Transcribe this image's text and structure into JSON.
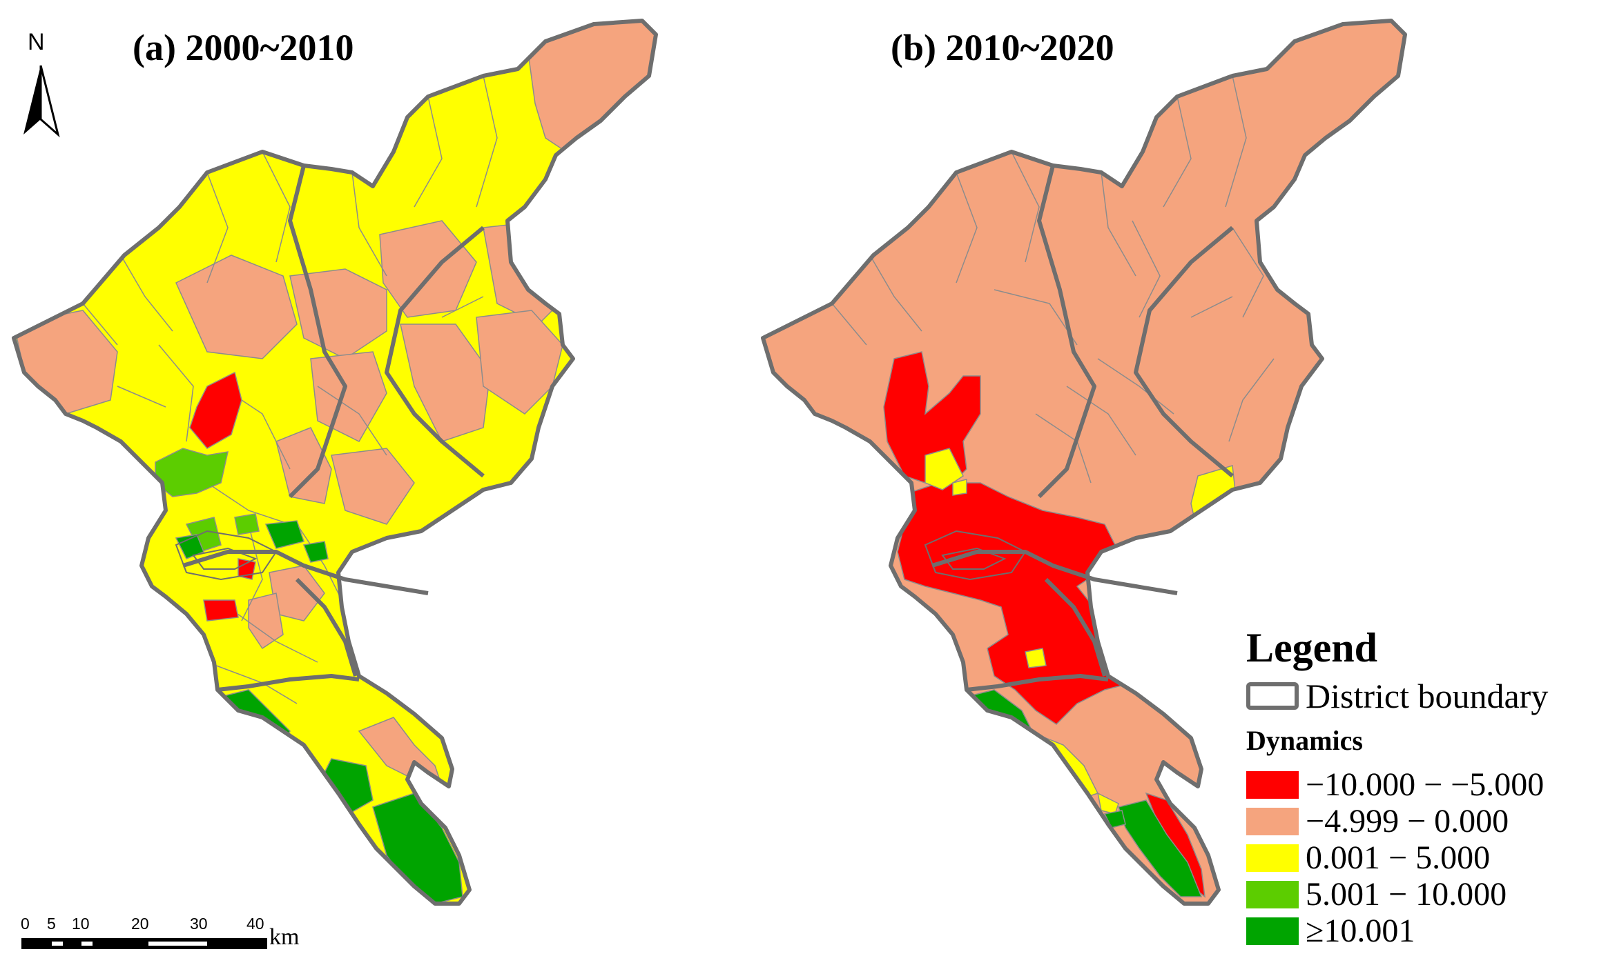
{
  "panels": [
    {
      "title": "(a) 2000~2010"
    },
    {
      "title": "(b) 2010~2020"
    }
  ],
  "north_arrow": {
    "label": "N"
  },
  "scale_bar": {
    "ticks": [
      "0",
      "5",
      "10",
      "20",
      "30",
      "40"
    ],
    "unit": "km"
  },
  "legend": {
    "title": "Legend",
    "boundary_label": "District boundary",
    "subtitle": "Dynamics",
    "classes": [
      {
        "label": "−10.000 − −5.000",
        "color": "#ff0000"
      },
      {
        "label": "−4.999 − 0.000",
        "color": "#f5a47e"
      },
      {
        "label": "0.001 − 5.000",
        "color": "#ffff00"
      },
      {
        "label": "5.001 − 10.000",
        "color": "#5ccd00"
      },
      {
        "label": "≥10.001",
        "color": "#00a400"
      }
    ]
  },
  "colors": {
    "boundary": "#6e6e6e",
    "subdivision": "#8c8c8c"
  }
}
